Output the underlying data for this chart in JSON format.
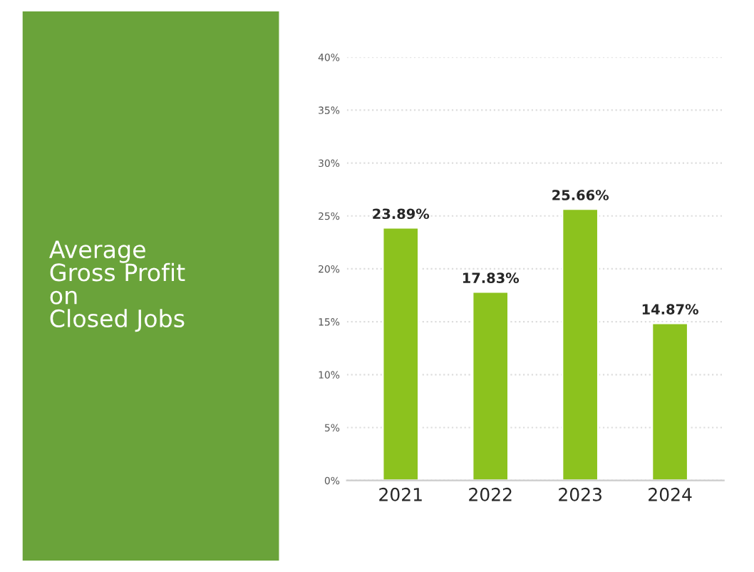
{
  "chart_data": {
    "type": "bar",
    "title": "Average\nGross Profit\non\nClosed Jobs",
    "categories": [
      "2021",
      "2022",
      "2023",
      "2024"
    ],
    "values": [
      23.89,
      17.83,
      25.66,
      14.87
    ],
    "value_labels": [
      "23.89%",
      "17.83%",
      "25.66%",
      "14.87%"
    ],
    "color": "#8cc21e",
    "ylim": [
      0,
      40
    ],
    "yticks": [
      {
        "value": 0,
        "label": "0%"
      },
      {
        "value": 5,
        "label": "5%"
      },
      {
        "value": 10,
        "label": "10%"
      },
      {
        "value": 15,
        "label": "15%"
      },
      {
        "value": 20,
        "label": "20%"
      },
      {
        "value": 25,
        "label": "25%"
      },
      {
        "value": 30,
        "label": "30%"
      },
      {
        "value": 35,
        "label": "35%"
      },
      {
        "value": 40,
        "label": "40%"
      }
    ],
    "grid": "y"
  }
}
